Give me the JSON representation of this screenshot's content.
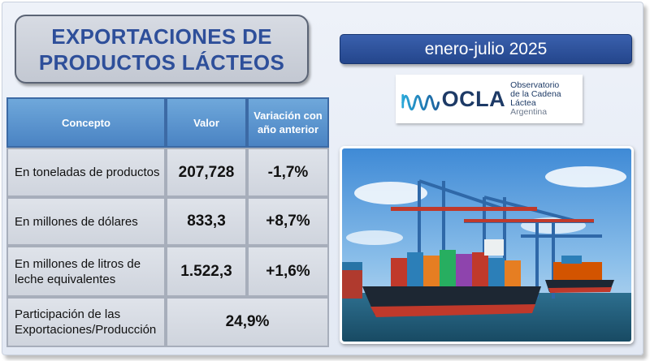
{
  "title": {
    "line1": "EXPORTACIONES DE",
    "line2": "PRODUCTOS LÁCTEOS"
  },
  "period": "enero-julio 2025",
  "logo": {
    "name": "OCLA",
    "line1": "Observatorio",
    "line2": "de la Cadena Láctea",
    "line3": "Argentina"
  },
  "table": {
    "headers": {
      "concept": "Concepto",
      "value": "Valor",
      "variation": "Variación con año anterior"
    },
    "rows": [
      {
        "label": "En toneladas de productos",
        "value": "207,728",
        "variation": "-1,7%"
      },
      {
        "label": "En millones de dólares",
        "value": "833,3",
        "variation": "+8,7%"
      },
      {
        "label": "En millones de litros de leche equivalentes",
        "value": "1.522,3",
        "variation": "+1,6%"
      }
    ],
    "share": {
      "label": "Participación de las Exportaciones/Producción",
      "value": "24,9%"
    }
  },
  "colors": {
    "title_text": "#2e4f9a",
    "period_bg": "#2b4f98",
    "header_bg": "#5b93cf"
  }
}
